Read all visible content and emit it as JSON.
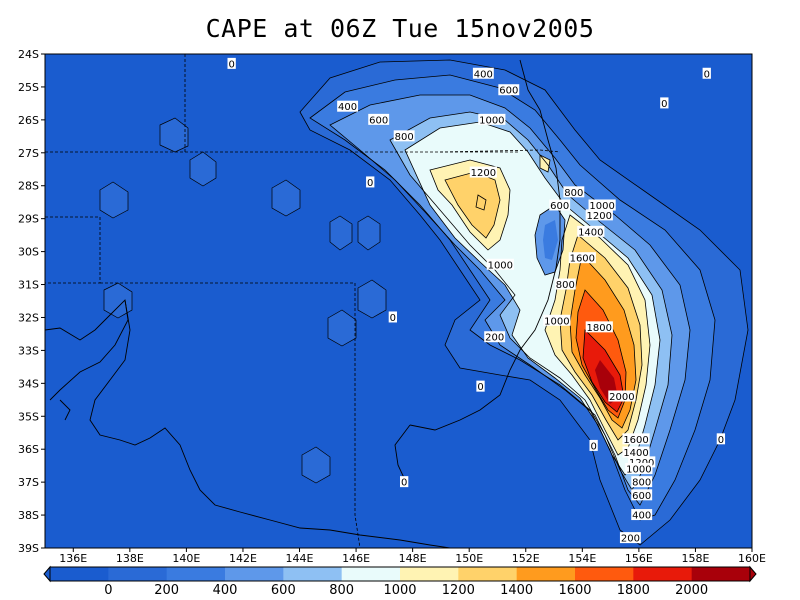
{
  "title": "CAPE at 06Z Tue 15nov2005",
  "map": {
    "lat_labels": [
      "24S",
      "25S",
      "26S",
      "27S",
      "28S",
      "29S",
      "30S",
      "31S",
      "32S",
      "33S",
      "34S",
      "35S",
      "36S",
      "37S",
      "38S",
      "39S"
    ],
    "lon_labels": [
      "136E",
      "138E",
      "140E",
      "142E",
      "144E",
      "146E",
      "148E",
      "150E",
      "152E",
      "154E",
      "156E",
      "158E",
      "160E"
    ],
    "lon_range": [
      135,
      160
    ],
    "lat_range": [
      -39,
      -24
    ],
    "contour_levels": [
      0,
      200,
      400,
      600,
      800,
      1000,
      1200,
      1400,
      1600,
      1800,
      2000
    ],
    "contour_labels": [
      {
        "text": "0",
        "lon": 141.6,
        "lat": -24.3
      },
      {
        "text": "400",
        "lon": 150.5,
        "lat": -24.6
      },
      {
        "text": "0",
        "lon": 158.4,
        "lat": -24.6
      },
      {
        "text": "600",
        "lon": 151.4,
        "lat": -25.1
      },
      {
        "text": "0",
        "lon": 156.9,
        "lat": -25.5
      },
      {
        "text": "400",
        "lon": 145.7,
        "lat": -25.6
      },
      {
        "text": "1000",
        "lon": 150.8,
        "lat": -26.0
      },
      {
        "text": "600",
        "lon": 146.8,
        "lat": -26.0
      },
      {
        "text": "800",
        "lon": 147.7,
        "lat": -26.5
      },
      {
        "text": "0",
        "lon": 146.5,
        "lat": -27.9
      },
      {
        "text": "1200",
        "lon": 150.5,
        "lat": -27.6
      },
      {
        "text": "800",
        "lon": 153.7,
        "lat": -28.2
      },
      {
        "text": "600",
        "lon": 153.2,
        "lat": -28.6
      },
      {
        "text": "1000",
        "lon": 154.7,
        "lat": -28.6
      },
      {
        "text": "1200",
        "lon": 154.6,
        "lat": -28.9
      },
      {
        "text": "1400",
        "lon": 154.3,
        "lat": -29.4
      },
      {
        "text": "1600",
        "lon": 154.0,
        "lat": -30.2
      },
      {
        "text": "1000",
        "lon": 151.1,
        "lat": -30.4
      },
      {
        "text": "800",
        "lon": 153.4,
        "lat": -31.0
      },
      {
        "text": "0",
        "lon": 147.3,
        "lat": -32.0
      },
      {
        "text": "1000",
        "lon": 153.1,
        "lat": -32.1
      },
      {
        "text": "1800",
        "lon": 154.6,
        "lat": -32.3
      },
      {
        "text": "200",
        "lon": 150.9,
        "lat": -32.6
      },
      {
        "text": "0",
        "lon": 150.4,
        "lat": -34.1
      },
      {
        "text": "2000",
        "lon": 155.4,
        "lat": -34.4
      },
      {
        "text": "1600",
        "lon": 155.9,
        "lat": -35.7
      },
      {
        "text": "0",
        "lon": 154.4,
        "lat": -35.9
      },
      {
        "text": "1400",
        "lon": 155.9,
        "lat": -36.1
      },
      {
        "text": "0",
        "lon": 158.9,
        "lat": -35.7
      },
      {
        "text": "1200",
        "lon": 156.1,
        "lat": -36.4
      },
      {
        "text": "1000",
        "lon": 156.0,
        "lat": -36.6
      },
      {
        "text": "0",
        "lon": 147.7,
        "lat": -37.0
      },
      {
        "text": "800",
        "lon": 156.1,
        "lat": -37.0
      },
      {
        "text": "600",
        "lon": 156.1,
        "lat": -37.4
      },
      {
        "text": "400",
        "lon": 156.1,
        "lat": -38.0
      },
      {
        "text": "200",
        "lon": 155.7,
        "lat": -38.7
      }
    ]
  },
  "colorbar": {
    "labels": [
      "0",
      "200",
      "400",
      "600",
      "800",
      "1000",
      "1200",
      "1400",
      "1600",
      "1800",
      "2000"
    ],
    "colors": [
      "#1a5ccf",
      "#2a6ad6",
      "#3a7be0",
      "#5e98ea",
      "#8ec0f3",
      "#e9fbfb",
      "#fff3b3",
      "#ffd26a",
      "#ff9b1e",
      "#ff5a0e",
      "#e81a0a",
      "#a8000a"
    ]
  }
}
